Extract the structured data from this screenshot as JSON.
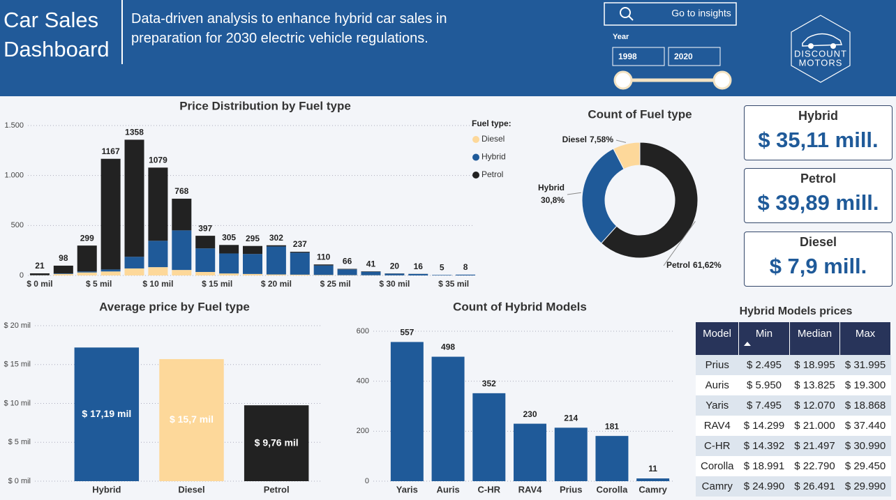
{
  "header": {
    "title": "Car Sales Dashboard",
    "subtitle": "Data-driven analysis to enhance hybrid car sales in preparation for 2030 electric vehicle regulations.",
    "button": "Go to insights",
    "slicer_label": "Year",
    "slicer_from": "1998",
    "slicer_to": "2020",
    "logo_line1": "DISCOUNT",
    "logo_line2": "MOTORS"
  },
  "chart_data": [
    {
      "type": "bar",
      "stacked": true,
      "title": "Price Distribution by Fuel type",
      "legend_title": "Fuel type:",
      "grid": true,
      "x": [
        0,
        2,
        4,
        6,
        8,
        10,
        12,
        14,
        16,
        18,
        20,
        22,
        24,
        26,
        28,
        30,
        32,
        34,
        36
      ],
      "xlim": [
        -1,
        37
      ],
      "xticks": [
        {
          "value": 0,
          "label": "$ 0 mil"
        },
        {
          "value": 5,
          "label": "$ 5 mil"
        },
        {
          "value": 10,
          "label": "$ 10 mil"
        },
        {
          "value": 15,
          "label": "$ 15 mil"
        },
        {
          "value": 20,
          "label": "$ 20 mil"
        },
        {
          "value": 25,
          "label": "$ 25 mil"
        },
        {
          "value": 30,
          "label": "$ 30 mil"
        },
        {
          "value": 35,
          "label": "$ 35 mil"
        }
      ],
      "ylim": [
        0,
        1500
      ],
      "yticks": [
        0,
        500,
        {
          "value": 1000,
          "label": "1.000"
        },
        {
          "value": 1500,
          "label": "1.500"
        }
      ],
      "series": [
        {
          "name": "Diesel",
          "color": "#fdd89a",
          "values": [
            2,
            15,
            30,
            40,
            70,
            83,
            55,
            35,
            20,
            15,
            10,
            8,
            5,
            3,
            2,
            1,
            0,
            0,
            0
          ]
        },
        {
          "name": "Hybrid",
          "color": "#1f5a99",
          "values": [
            1,
            5,
            10,
            20,
            117,
            264,
            396,
            236,
            200,
            200,
            280,
            220,
            95,
            58,
            35,
            17,
            15,
            5,
            8
          ]
        },
        {
          "name": "Petrol",
          "color": "#222222",
          "values": [
            18,
            78,
            259,
            1107,
            1171,
            732,
            317,
            126,
            85,
            80,
            12,
            9,
            10,
            5,
            4,
            2,
            1,
            0,
            0
          ]
        }
      ],
      "totals": [
        21,
        98,
        299,
        1167,
        1358,
        1079,
        768,
        397,
        305,
        295,
        302,
        237,
        110,
        66,
        41,
        20,
        16,
        5,
        8
      ]
    },
    {
      "type": "pie",
      "donut": true,
      "title": "Count of Fuel type",
      "categories": [
        "Petrol",
        "Hybrid",
        "Diesel"
      ],
      "values": [
        61.62,
        30.8,
        7.58
      ],
      "value_labels": [
        "61,62%",
        "30,8%",
        "7,58%"
      ],
      "colors": [
        "#222222",
        "#1f5a99",
        "#fdd89a"
      ]
    },
    {
      "type": "bar",
      "title": "Average price by Fuel type",
      "grid": true,
      "data_labels": "inside",
      "categories": [
        "Hybrid",
        "Diesel",
        "Petrol"
      ],
      "values": [
        17.19,
        15.7,
        9.76
      ],
      "value_labels": [
        "$ 17,19 mil",
        "$ 15,7 mil",
        "$ 9,76 mil"
      ],
      "colors": [
        "#1f5a99",
        "#fdd89a",
        "#222222"
      ],
      "ylim": [
        0,
        20
      ],
      "yticks": [
        {
          "value": 0,
          "label": "$ 0 mil"
        },
        {
          "value": 5,
          "label": "$ 5 mil"
        },
        {
          "value": 10,
          "label": "$ 10 mil"
        },
        {
          "value": 15,
          "label": "$ 15 mil"
        },
        {
          "value": 20,
          "label": "$ 20 mil"
        }
      ]
    },
    {
      "type": "bar",
      "title": "Count of Hybrid Models",
      "grid": true,
      "data_labels": "outside",
      "categories": [
        "Yaris",
        "Auris",
        "C-HR",
        "RAV4",
        "Prius",
        "Corolla",
        "Camry"
      ],
      "values": [
        557,
        498,
        352,
        230,
        214,
        181,
        11
      ],
      "color": "#1f5a99",
      "ylim": [
        0,
        600
      ],
      "yticks": [
        0,
        200,
        400,
        600
      ]
    }
  ],
  "kpis": [
    {
      "label": "Hybrid",
      "value": "$ 35,11 mill."
    },
    {
      "label": "Petrol",
      "value": "$ 39,89 mill."
    },
    {
      "label": "Diesel",
      "value": "$ 7,9 mill."
    }
  ],
  "table": {
    "title": "Hybrid Models prices",
    "columns": [
      "Model",
      "Min",
      "Median",
      "Max"
    ],
    "rows": [
      [
        "Prius",
        "$ 2.495",
        "$ 18.995",
        "$ 31.995"
      ],
      [
        "Auris",
        "$ 5.950",
        "$ 13.825",
        "$ 19.300"
      ],
      [
        "Yaris",
        "$ 7.495",
        "$ 12.070",
        "$ 18.868"
      ],
      [
        "RAV4",
        "$ 14.299",
        "$ 21.000",
        "$ 37.440"
      ],
      [
        "C-HR",
        "$ 14.392",
        "$ 21.497",
        "$ 30.990"
      ],
      [
        "Corolla",
        "$ 18.991",
        "$ 22.790",
        "$ 29.450"
      ],
      [
        "Camry",
        "$ 24.990",
        "$ 26.491",
        "$ 29.990"
      ]
    ]
  }
}
